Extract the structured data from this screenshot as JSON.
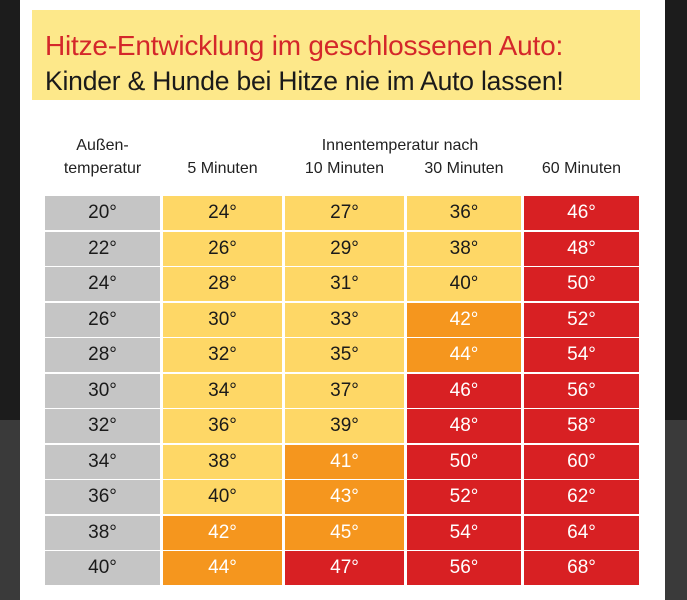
{
  "banner": {
    "title": "Hitze-Entwicklung im geschlossenen Auto:",
    "subtitle": "Kinder & Hunde bei Hitze nie im Auto lassen!"
  },
  "headers": {
    "outside_line1": "Außen-",
    "outside_line2": "temperatur",
    "inside_group": "Innentemperatur nach",
    "columns": [
      "5 Minuten",
      "10 Minuten",
      "30 Minuten",
      "60 Minuten"
    ]
  },
  "colors": {
    "gray": "#c5c5c5",
    "yellow": "#fed766",
    "orange": "#f5961e",
    "red": "#d82023"
  },
  "rows": [
    {
      "outside": "20°",
      "m5": "24°",
      "m10": "27°",
      "m30": "36°",
      "m60": "46°",
      "c": [
        "gray",
        "yellow",
        "yellow",
        "yellow",
        "red"
      ]
    },
    {
      "outside": "22°",
      "m5": "26°",
      "m10": "29°",
      "m30": "38°",
      "m60": "48°",
      "c": [
        "gray",
        "yellow",
        "yellow",
        "yellow",
        "red"
      ]
    },
    {
      "outside": "24°",
      "m5": "28°",
      "m10": "31°",
      "m30": "40°",
      "m60": "50°",
      "c": [
        "gray",
        "yellow",
        "yellow",
        "yellow",
        "red"
      ]
    },
    {
      "outside": "26°",
      "m5": "30°",
      "m10": "33°",
      "m30": "42°",
      "m60": "52°",
      "c": [
        "gray",
        "yellow",
        "yellow",
        "orange",
        "red"
      ]
    },
    {
      "outside": "28°",
      "m5": "32°",
      "m10": "35°",
      "m30": "44°",
      "m60": "54°",
      "c": [
        "gray",
        "yellow",
        "yellow",
        "orange",
        "red"
      ]
    },
    {
      "outside": "30°",
      "m5": "34°",
      "m10": "37°",
      "m30": "46°",
      "m60": "56°",
      "c": [
        "gray",
        "yellow",
        "yellow",
        "red",
        "red"
      ]
    },
    {
      "outside": "32°",
      "m5": "36°",
      "m10": "39°",
      "m30": "48°",
      "m60": "58°",
      "c": [
        "gray",
        "yellow",
        "yellow",
        "red",
        "red"
      ]
    },
    {
      "outside": "34°",
      "m5": "38°",
      "m10": "41°",
      "m30": "50°",
      "m60": "60°",
      "c": [
        "gray",
        "yellow",
        "orange",
        "red",
        "red"
      ]
    },
    {
      "outside": "36°",
      "m5": "40°",
      "m10": "43°",
      "m30": "52°",
      "m60": "62°",
      "c": [
        "gray",
        "yellow",
        "orange",
        "red",
        "red"
      ]
    },
    {
      "outside": "38°",
      "m5": "42°",
      "m10": "45°",
      "m30": "54°",
      "m60": "64°",
      "c": [
        "gray",
        "orange",
        "orange",
        "red",
        "red"
      ]
    },
    {
      "outside": "40°",
      "m5": "44°",
      "m10": "47°",
      "m30": "56°",
      "m60": "68°",
      "c": [
        "gray",
        "orange",
        "red",
        "red",
        "red"
      ]
    }
  ]
}
